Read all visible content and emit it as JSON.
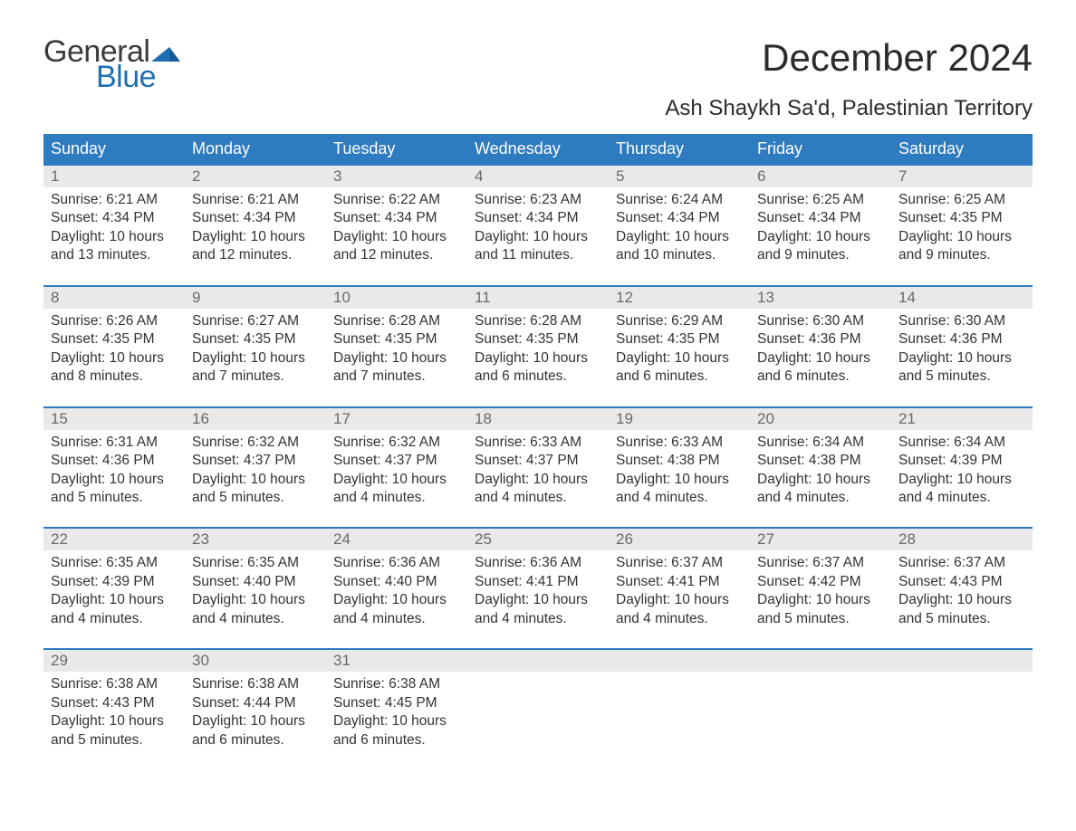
{
  "logo": {
    "word1": "General",
    "word2": "Blue"
  },
  "title": "December 2024",
  "location": "Ash Shaykh Sa'd, Palestinian Territory",
  "colors": {
    "header_bg": "#2f7bbf",
    "header_text": "#ffffff",
    "daynum_bg": "#e9e9e9",
    "daynum_text": "#6a6a6a",
    "body_text": "#333333",
    "border": "#2f7bbf",
    "logo_gray": "#3a3a3a",
    "logo_blue": "#1f6fb2"
  },
  "weekdays": [
    "Sunday",
    "Monday",
    "Tuesday",
    "Wednesday",
    "Thursday",
    "Friday",
    "Saturday"
  ],
  "weeks": [
    [
      {
        "n": "1",
        "sunrise": "Sunrise: 6:21 AM",
        "sunset": "Sunset: 4:34 PM",
        "dl1": "Daylight: 10 hours",
        "dl2": "and 13 minutes."
      },
      {
        "n": "2",
        "sunrise": "Sunrise: 6:21 AM",
        "sunset": "Sunset: 4:34 PM",
        "dl1": "Daylight: 10 hours",
        "dl2": "and 12 minutes."
      },
      {
        "n": "3",
        "sunrise": "Sunrise: 6:22 AM",
        "sunset": "Sunset: 4:34 PM",
        "dl1": "Daylight: 10 hours",
        "dl2": "and 12 minutes."
      },
      {
        "n": "4",
        "sunrise": "Sunrise: 6:23 AM",
        "sunset": "Sunset: 4:34 PM",
        "dl1": "Daylight: 10 hours",
        "dl2": "and 11 minutes."
      },
      {
        "n": "5",
        "sunrise": "Sunrise: 6:24 AM",
        "sunset": "Sunset: 4:34 PM",
        "dl1": "Daylight: 10 hours",
        "dl2": "and 10 minutes."
      },
      {
        "n": "6",
        "sunrise": "Sunrise: 6:25 AM",
        "sunset": "Sunset: 4:34 PM",
        "dl1": "Daylight: 10 hours",
        "dl2": "and 9 minutes."
      },
      {
        "n": "7",
        "sunrise": "Sunrise: 6:25 AM",
        "sunset": "Sunset: 4:35 PM",
        "dl1": "Daylight: 10 hours",
        "dl2": "and 9 minutes."
      }
    ],
    [
      {
        "n": "8",
        "sunrise": "Sunrise: 6:26 AM",
        "sunset": "Sunset: 4:35 PM",
        "dl1": "Daylight: 10 hours",
        "dl2": "and 8 minutes."
      },
      {
        "n": "9",
        "sunrise": "Sunrise: 6:27 AM",
        "sunset": "Sunset: 4:35 PM",
        "dl1": "Daylight: 10 hours",
        "dl2": "and 7 minutes."
      },
      {
        "n": "10",
        "sunrise": "Sunrise: 6:28 AM",
        "sunset": "Sunset: 4:35 PM",
        "dl1": "Daylight: 10 hours",
        "dl2": "and 7 minutes."
      },
      {
        "n": "11",
        "sunrise": "Sunrise: 6:28 AM",
        "sunset": "Sunset: 4:35 PM",
        "dl1": "Daylight: 10 hours",
        "dl2": "and 6 minutes."
      },
      {
        "n": "12",
        "sunrise": "Sunrise: 6:29 AM",
        "sunset": "Sunset: 4:35 PM",
        "dl1": "Daylight: 10 hours",
        "dl2": "and 6 minutes."
      },
      {
        "n": "13",
        "sunrise": "Sunrise: 6:30 AM",
        "sunset": "Sunset: 4:36 PM",
        "dl1": "Daylight: 10 hours",
        "dl2": "and 6 minutes."
      },
      {
        "n": "14",
        "sunrise": "Sunrise: 6:30 AM",
        "sunset": "Sunset: 4:36 PM",
        "dl1": "Daylight: 10 hours",
        "dl2": "and 5 minutes."
      }
    ],
    [
      {
        "n": "15",
        "sunrise": "Sunrise: 6:31 AM",
        "sunset": "Sunset: 4:36 PM",
        "dl1": "Daylight: 10 hours",
        "dl2": "and 5 minutes."
      },
      {
        "n": "16",
        "sunrise": "Sunrise: 6:32 AM",
        "sunset": "Sunset: 4:37 PM",
        "dl1": "Daylight: 10 hours",
        "dl2": "and 5 minutes."
      },
      {
        "n": "17",
        "sunrise": "Sunrise: 6:32 AM",
        "sunset": "Sunset: 4:37 PM",
        "dl1": "Daylight: 10 hours",
        "dl2": "and 4 minutes."
      },
      {
        "n": "18",
        "sunrise": "Sunrise: 6:33 AM",
        "sunset": "Sunset: 4:37 PM",
        "dl1": "Daylight: 10 hours",
        "dl2": "and 4 minutes."
      },
      {
        "n": "19",
        "sunrise": "Sunrise: 6:33 AM",
        "sunset": "Sunset: 4:38 PM",
        "dl1": "Daylight: 10 hours",
        "dl2": "and 4 minutes."
      },
      {
        "n": "20",
        "sunrise": "Sunrise: 6:34 AM",
        "sunset": "Sunset: 4:38 PM",
        "dl1": "Daylight: 10 hours",
        "dl2": "and 4 minutes."
      },
      {
        "n": "21",
        "sunrise": "Sunrise: 6:34 AM",
        "sunset": "Sunset: 4:39 PM",
        "dl1": "Daylight: 10 hours",
        "dl2": "and 4 minutes."
      }
    ],
    [
      {
        "n": "22",
        "sunrise": "Sunrise: 6:35 AM",
        "sunset": "Sunset: 4:39 PM",
        "dl1": "Daylight: 10 hours",
        "dl2": "and 4 minutes."
      },
      {
        "n": "23",
        "sunrise": "Sunrise: 6:35 AM",
        "sunset": "Sunset: 4:40 PM",
        "dl1": "Daylight: 10 hours",
        "dl2": "and 4 minutes."
      },
      {
        "n": "24",
        "sunrise": "Sunrise: 6:36 AM",
        "sunset": "Sunset: 4:40 PM",
        "dl1": "Daylight: 10 hours",
        "dl2": "and 4 minutes."
      },
      {
        "n": "25",
        "sunrise": "Sunrise: 6:36 AM",
        "sunset": "Sunset: 4:41 PM",
        "dl1": "Daylight: 10 hours",
        "dl2": "and 4 minutes."
      },
      {
        "n": "26",
        "sunrise": "Sunrise: 6:37 AM",
        "sunset": "Sunset: 4:41 PM",
        "dl1": "Daylight: 10 hours",
        "dl2": "and 4 minutes."
      },
      {
        "n": "27",
        "sunrise": "Sunrise: 6:37 AM",
        "sunset": "Sunset: 4:42 PM",
        "dl1": "Daylight: 10 hours",
        "dl2": "and 5 minutes."
      },
      {
        "n": "28",
        "sunrise": "Sunrise: 6:37 AM",
        "sunset": "Sunset: 4:43 PM",
        "dl1": "Daylight: 10 hours",
        "dl2": "and 5 minutes."
      }
    ],
    [
      {
        "n": "29",
        "sunrise": "Sunrise: 6:38 AM",
        "sunset": "Sunset: 4:43 PM",
        "dl1": "Daylight: 10 hours",
        "dl2": "and 5 minutes."
      },
      {
        "n": "30",
        "sunrise": "Sunrise: 6:38 AM",
        "sunset": "Sunset: 4:44 PM",
        "dl1": "Daylight: 10 hours",
        "dl2": "and 6 minutes."
      },
      {
        "n": "31",
        "sunrise": "Sunrise: 6:38 AM",
        "sunset": "Sunset: 4:45 PM",
        "dl1": "Daylight: 10 hours",
        "dl2": "and 6 minutes."
      },
      {
        "n": "",
        "sunrise": "",
        "sunset": "",
        "dl1": "",
        "dl2": ""
      },
      {
        "n": "",
        "sunrise": "",
        "sunset": "",
        "dl1": "",
        "dl2": ""
      },
      {
        "n": "",
        "sunrise": "",
        "sunset": "",
        "dl1": "",
        "dl2": ""
      },
      {
        "n": "",
        "sunrise": "",
        "sunset": "",
        "dl1": "",
        "dl2": ""
      }
    ]
  ]
}
